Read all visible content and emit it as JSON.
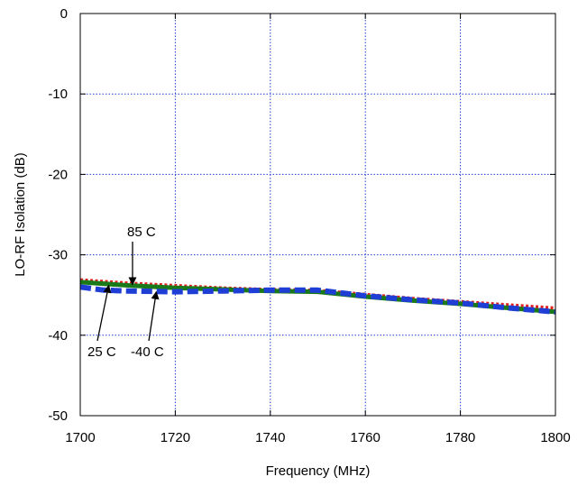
{
  "chart_data": {
    "type": "line",
    "title": "",
    "xlabel": "Frequency (MHz)",
    "ylabel": "LO-RF Isolation (dB)",
    "xlim": [
      1700,
      1800
    ],
    "ylim": [
      -50,
      0
    ],
    "x_ticks": [
      "1700",
      "1720",
      "1740",
      "1760",
      "1780",
      "1800"
    ],
    "y_ticks": [
      "0",
      "-10",
      "-20",
      "-30",
      "-40",
      "-50"
    ],
    "grid": true,
    "series": [
      {
        "name": "85 C",
        "color": "#e02020",
        "style": "dotted",
        "x": [
          1700,
          1710,
          1720,
          1730,
          1740,
          1750,
          1760,
          1770,
          1780,
          1790,
          1800
        ],
        "y": [
          -33.2,
          -33.6,
          -33.9,
          -34.2,
          -34.4,
          -34.5,
          -35.0,
          -35.5,
          -35.9,
          -36.3,
          -36.7
        ]
      },
      {
        "name": "25 C",
        "color": "#1a7a1a",
        "style": "solid",
        "x": [
          1700,
          1710,
          1720,
          1730,
          1740,
          1750,
          1760,
          1770,
          1780,
          1790,
          1800
        ],
        "y": [
          -33.4,
          -33.8,
          -34.1,
          -34.3,
          -34.5,
          -34.6,
          -35.2,
          -35.7,
          -36.1,
          -36.6,
          -37.1
        ]
      },
      {
        "name": "-40 C",
        "color": "#1f3ed6",
        "style": "dashed",
        "x": [
          1700,
          1705,
          1710,
          1720,
          1730,
          1740,
          1750,
          1760,
          1770,
          1780,
          1790,
          1800
        ],
        "y": [
          -34.0,
          -34.4,
          -34.5,
          -34.6,
          -34.5,
          -34.4,
          -34.4,
          -35.1,
          -35.6,
          -36.0,
          -36.6,
          -37.1
        ]
      }
    ],
    "annotations": [
      {
        "text": "85 C",
        "tip_x": 1711,
        "tip_y": -33.7
      },
      {
        "text": "25 C",
        "tip_x": 1706,
        "tip_y": -33.8
      },
      {
        "text": "-40 C",
        "tip_x": 1716,
        "tip_y": -34.6
      }
    ]
  }
}
